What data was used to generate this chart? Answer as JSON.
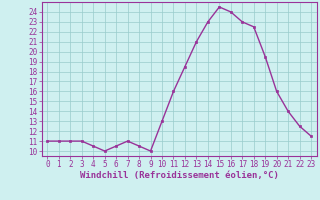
{
  "x": [
    0,
    1,
    2,
    3,
    4,
    5,
    6,
    7,
    8,
    9,
    10,
    11,
    12,
    13,
    14,
    15,
    16,
    17,
    18,
    19,
    20,
    21,
    22,
    23
  ],
  "y": [
    11,
    11,
    11,
    11,
    10.5,
    10,
    10.5,
    11,
    10.5,
    10,
    13,
    16,
    18.5,
    21,
    23,
    24.5,
    24,
    23,
    22.5,
    19.5,
    16,
    14,
    12.5,
    11.5
  ],
  "line_color": "#993399",
  "marker": "s",
  "marker_size": 2,
  "background_color": "#cff0f0",
  "grid_color": "#99cccc",
  "xlabel": "Windchill (Refroidissement éolien,°C)",
  "xlabel_color": "#993399",
  "tick_color": "#993399",
  "spine_color": "#993399",
  "ylim": [
    9.5,
    25
  ],
  "xlim": [
    -0.5,
    23.5
  ],
  "yticks": [
    10,
    11,
    12,
    13,
    14,
    15,
    16,
    17,
    18,
    19,
    20,
    21,
    22,
    23,
    24
  ],
  "xticks": [
    0,
    1,
    2,
    3,
    4,
    5,
    6,
    7,
    8,
    9,
    10,
    11,
    12,
    13,
    14,
    15,
    16,
    17,
    18,
    19,
    20,
    21,
    22,
    23
  ],
  "ytick_fontsize": 5.5,
  "xtick_fontsize": 5.5,
  "xlabel_fontsize": 6.5,
  "linewidth": 1.0
}
